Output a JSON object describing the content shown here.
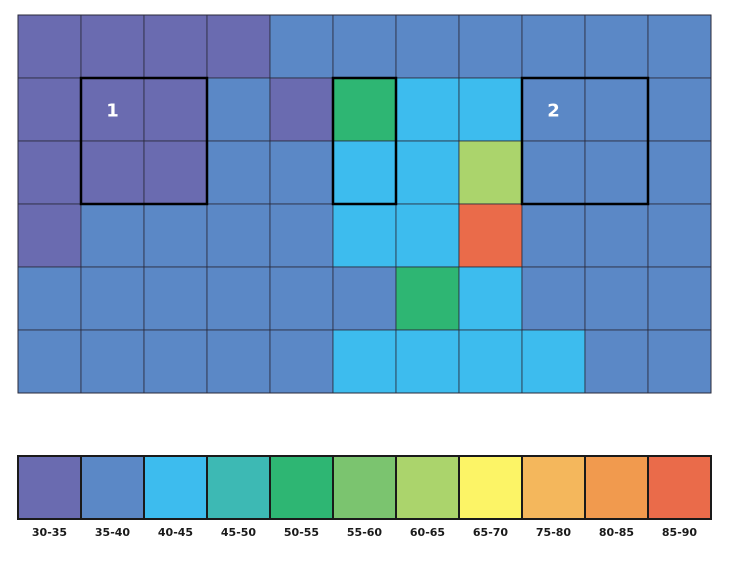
{
  "chart_data": {
    "type": "heatmap",
    "rows": 6,
    "cols": 11,
    "bins": [
      "30-35",
      "35-40",
      "40-45",
      "45-50",
      "50-55",
      "55-60",
      "60-65",
      "65-70",
      "75-80",
      "80-85",
      "85-90"
    ],
    "bin_colors": [
      "#6a6bb0",
      "#5b88c6",
      "#3dbcee",
      "#3db9b4",
      "#2eb673",
      "#7bc46f",
      "#abd46c",
      "#fcf466",
      "#f4b75c",
      "#f19a4e",
      "#ea6b4a"
    ],
    "cells": [
      [
        0,
        0,
        0,
        0,
        1,
        1,
        1,
        1,
        1,
        1,
        1
      ],
      [
        0,
        0,
        0,
        1,
        0,
        4,
        2,
        2,
        1,
        1,
        1
      ],
      [
        0,
        0,
        0,
        1,
        1,
        2,
        2,
        6,
        1,
        1,
        1
      ],
      [
        0,
        1,
        1,
        1,
        1,
        2,
        2,
        10,
        1,
        1,
        1
      ],
      [
        1,
        1,
        1,
        1,
        1,
        1,
        4,
        2,
        1,
        1,
        1
      ],
      [
        1,
        1,
        1,
        1,
        1,
        2,
        2,
        2,
        2,
        1,
        1
      ]
    ],
    "regions": [
      {
        "label": "1",
        "row": 1,
        "col": 1,
        "row_span": 2,
        "col_span": 2
      },
      {
        "label": "",
        "row": 1,
        "col": 5,
        "row_span": 2,
        "col_span": 1
      },
      {
        "label": "2",
        "row": 1,
        "col": 8,
        "row_span": 2,
        "col_span": 2
      }
    ]
  }
}
